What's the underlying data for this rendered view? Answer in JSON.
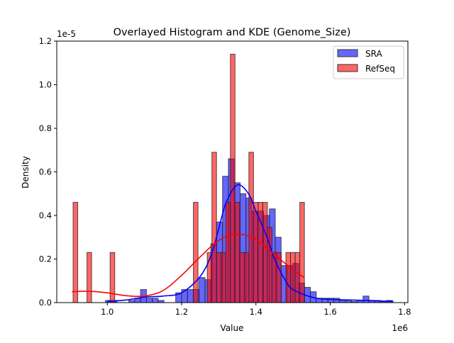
{
  "chart_data": {
    "type": "histogram+kde",
    "title": "Overlayed Histogram and KDE (Genome_Size)",
    "xlabel": "Value",
    "ylabel": "Density",
    "x_offset_label": "1e6",
    "y_offset_label": "1e-5",
    "xlim": [
      0.864,
      1.809
    ],
    "ylim": [
      0,
      1.2
    ],
    "x_ticks": [
      "1.0",
      "1.2",
      "1.4",
      "1.6",
      "1.8"
    ],
    "x_tick_values": [
      1.0,
      1.2,
      1.4,
      1.6,
      1.8
    ],
    "y_ticks": [
      "0.0",
      "0.2",
      "0.4",
      "0.6",
      "0.8",
      "1.0",
      "1.2"
    ],
    "y_tick_values": [
      0,
      0.2,
      0.4,
      0.6,
      0.8,
      1.0,
      1.2
    ],
    "grid": false,
    "legend_position": "top-right",
    "series": [
      {
        "name": "SRA",
        "color": "#0000ff",
        "bin_start": 0.995,
        "bin_width": 0.01576,
        "heights": [
          0.01,
          0.01,
          0,
          0,
          0.01,
          0.02,
          0.06,
          0.02,
          0.02,
          0.01,
          0,
          0,
          0.045,
          0.06,
          0.06,
          0.06,
          0.115,
          0.105,
          0.27,
          0.37,
          0.58,
          0.66,
          0.55,
          0.5,
          0.48,
          0.42,
          0.42,
          0.4,
          0.43,
          0.3,
          0.17,
          0.17,
          0.18,
          0.09,
          0.07,
          0.05,
          0.02,
          0.02,
          0.02,
          0.02,
          0.01,
          0.01,
          0.005,
          0.01,
          0.03,
          0.01,
          0.01,
          0.005,
          0.01
        ],
        "kde": [
          [
            1.0,
            0.005
          ],
          [
            1.05,
            0.012
          ],
          [
            1.1,
            0.025
          ],
          [
            1.15,
            0.03
          ],
          [
            1.2,
            0.045
          ],
          [
            1.25,
            0.12
          ],
          [
            1.28,
            0.22
          ],
          [
            1.3,
            0.34
          ],
          [
            1.32,
            0.46
          ],
          [
            1.35,
            0.54
          ],
          [
            1.38,
            0.5
          ],
          [
            1.4,
            0.42
          ],
          [
            1.43,
            0.3
          ],
          [
            1.45,
            0.2
          ],
          [
            1.48,
            0.1
          ],
          [
            1.5,
            0.06
          ],
          [
            1.55,
            0.025
          ],
          [
            1.6,
            0.015
          ],
          [
            1.7,
            0.01
          ],
          [
            1.77,
            0.005
          ]
        ]
      },
      {
        "name": "RefSeq",
        "color": "#ff0000",
        "bin_start": 0.908,
        "bin_width": 0.01245,
        "heights": [
          0.46,
          0,
          0,
          0.23,
          0,
          0,
          0,
          0,
          0.23,
          0,
          0,
          0,
          0,
          0,
          0,
          0,
          0,
          0,
          0,
          0,
          0,
          0,
          0,
          0,
          0,
          0,
          0.46,
          0,
          0,
          0.23,
          0.69,
          0.23,
          0.23,
          0.46,
          1.14,
          0.46,
          0.23,
          0.23,
          0.69,
          0.46,
          0.46,
          0.46,
          0.345,
          0.23,
          0.23,
          0,
          0.23,
          0.23,
          0.23,
          0.46
        ],
        "kde": [
          [
            0.905,
            0.05
          ],
          [
            0.95,
            0.052
          ],
          [
            1.0,
            0.045
          ],
          [
            1.05,
            0.032
          ],
          [
            1.1,
            0.03
          ],
          [
            1.15,
            0.055
          ],
          [
            1.2,
            0.125
          ],
          [
            1.25,
            0.21
          ],
          [
            1.3,
            0.285
          ],
          [
            1.35,
            0.315
          ],
          [
            1.4,
            0.29
          ],
          [
            1.45,
            0.22
          ],
          [
            1.5,
            0.15
          ],
          [
            1.53,
            0.115
          ]
        ]
      }
    ]
  }
}
